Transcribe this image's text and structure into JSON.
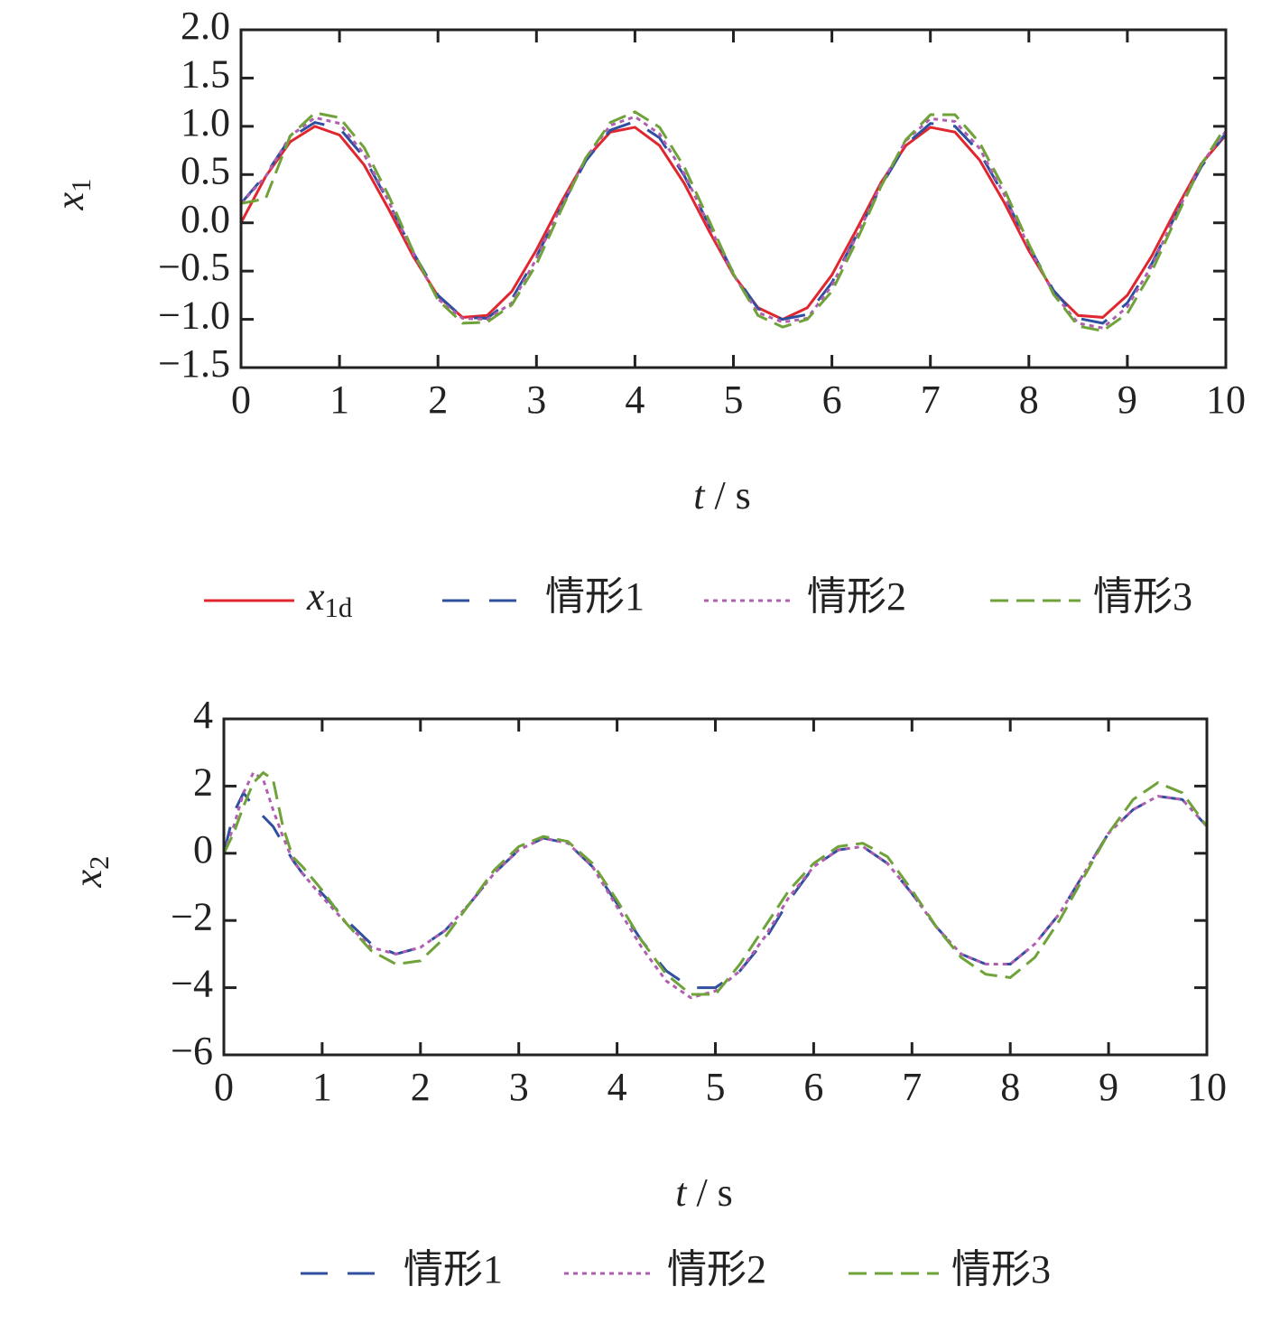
{
  "chart_data": [
    {
      "type": "line",
      "xlabel": "t / s",
      "ylabel": "x1",
      "legend": "bottom",
      "grid": false,
      "xlim": [
        0,
        10
      ],
      "xticks": [
        0,
        1,
        2,
        3,
        4,
        5,
        6,
        7,
        8,
        9,
        10
      ],
      "ylim": [
        -1.5,
        2
      ],
      "yticks": [
        {
          "value": 2,
          "label": "2.0"
        },
        1.5,
        {
          "value": 1,
          "label": "1.0"
        },
        0.5,
        {
          "value": 0,
          "label": "0.0"
        },
        {
          "value": -0.5,
          "label": "−0.5"
        },
        {
          "value": -1,
          "label": "−1.0"
        },
        {
          "value": -1.5,
          "label": "−1.5"
        }
      ],
      "x": [
        0,
        0.25,
        0.5,
        0.75,
        1,
        1.25,
        1.5,
        1.75,
        2,
        2.25,
        2.5,
        2.75,
        3,
        3.25,
        3.5,
        3.75,
        4,
        4.25,
        4.5,
        4.75,
        5,
        5.25,
        5.5,
        5.75,
        6,
        6.25,
        6.5,
        6.75,
        7,
        7.25,
        7.5,
        7.75,
        8,
        8.25,
        8.5,
        8.75,
        9,
        9.25,
        9.5,
        9.75,
        10
      ],
      "series": [
        {
          "name": "x1d",
          "color": "#e0262e",
          "dash": "solid",
          "values": [
            0,
            0.48,
            0.84,
            1.0,
            0.91,
            0.6,
            0.14,
            -0.35,
            -0.76,
            -0.98,
            -0.96,
            -0.71,
            -0.28,
            0.21,
            0.66,
            0.94,
            0.99,
            0.8,
            0.41,
            -0.08,
            -0.54,
            -0.88,
            -1.0,
            -0.88,
            -0.54,
            -0.07,
            0.42,
            0.8,
            0.99,
            0.94,
            0.65,
            0.21,
            -0.29,
            -0.71,
            -0.96,
            -0.98,
            -0.75,
            -0.34,
            0.15,
            0.61,
            0.91
          ]
        },
        {
          "name": "情形1",
          "color": "#2f4f9f",
          "dash": "long",
          "values": [
            0.2,
            0.5,
            0.88,
            1.04,
            0.98,
            0.68,
            0.21,
            -0.31,
            -0.75,
            -0.98,
            -0.99,
            -0.79,
            -0.35,
            0.16,
            0.64,
            0.96,
            1.05,
            0.88,
            0.49,
            -0.02,
            -0.52,
            -0.89,
            -1.0,
            -0.95,
            -0.62,
            -0.13,
            0.38,
            0.81,
            1.03,
            1.0,
            0.73,
            0.28,
            -0.24,
            -0.7,
            -0.99,
            -1.04,
            -0.83,
            -0.42,
            0.1,
            0.58,
            0.93
          ]
        },
        {
          "name": "情形2",
          "color": "#b05fb0",
          "dash": "dot",
          "values": [
            0.2,
            0.48,
            0.9,
            1.09,
            1.03,
            0.71,
            0.22,
            -0.32,
            -0.79,
            -0.99,
            -1.0,
            -0.83,
            -0.37,
            0.17,
            0.67,
            1.01,
            1.1,
            0.92,
            0.51,
            -0.02,
            -0.54,
            -0.93,
            -1.03,
            -0.99,
            -0.65,
            -0.14,
            0.4,
            0.85,
            1.08,
            1.05,
            0.77,
            0.29,
            -0.25,
            -0.73,
            -1.04,
            -1.09,
            -0.87,
            -0.44,
            0.1,
            0.61,
            0.95
          ]
        },
        {
          "name": "情形3",
          "color": "#6fa33a",
          "dash": "dash",
          "values": [
            0.2,
            0.25,
            0.9,
            1.14,
            1.09,
            0.78,
            0.28,
            -0.3,
            -0.8,
            -1.04,
            -1.03,
            -0.85,
            -0.43,
            0.13,
            0.67,
            1.04,
            1.15,
            0.99,
            0.58,
            0.03,
            -0.53,
            -0.96,
            -1.08,
            -1.0,
            -0.71,
            -0.19,
            0.38,
            0.86,
            1.12,
            1.12,
            0.83,
            0.35,
            -0.22,
            -0.74,
            -1.07,
            -1.12,
            -0.94,
            -0.5,
            0.06,
            0.6,
            1.0
          ]
        }
      ]
    },
    {
      "type": "line",
      "xlabel": "t / s",
      "ylabel": "x2",
      "legend": "bottom",
      "grid": false,
      "xlim": [
        0,
        10
      ],
      "xticks": [
        0,
        1,
        2,
        3,
        4,
        5,
        6,
        7,
        8,
        9,
        10
      ],
      "ylim": [
        -6,
        4
      ],
      "yticks": [
        4,
        2,
        0,
        {
          "value": -2,
          "label": "−2"
        },
        {
          "value": -4,
          "label": "−4"
        },
        {
          "value": -6,
          "label": "−6"
        }
      ],
      "x": [
        0,
        0.1,
        0.2,
        0.3,
        0.4,
        0.5,
        0.6,
        0.7,
        0.8,
        1,
        1.25,
        1.5,
        1.75,
        2,
        2.25,
        2.5,
        2.75,
        3,
        3.25,
        3.5,
        3.75,
        4,
        4.25,
        4.5,
        4.75,
        5,
        5.25,
        5.5,
        5.75,
        6,
        6.25,
        6.5,
        6.75,
        7,
        7.25,
        7.5,
        7.75,
        8,
        8.25,
        8.5,
        8.75,
        9,
        9.25,
        9.5,
        9.75,
        10
      ],
      "series": [
        {
          "name": "情形1",
          "color": "#2f4f9f",
          "dash": "long",
          "values": [
            0,
            1.2,
            1.8,
            1.4,
            1.1,
            0.8,
            0.3,
            -0.2,
            -0.6,
            -1.2,
            -2.0,
            -2.7,
            -3.0,
            -2.8,
            -2.3,
            -1.5,
            -0.6,
            0.1,
            0.45,
            0.3,
            -0.4,
            -1.5,
            -2.6,
            -3.5,
            -4.0,
            -4.0,
            -3.5,
            -2.6,
            -1.4,
            -0.4,
            0.1,
            0.2,
            -0.3,
            -1.2,
            -2.2,
            -3.0,
            -3.3,
            -3.3,
            -2.7,
            -1.8,
            -0.6,
            0.6,
            1.3,
            1.7,
            1.6,
            0.8
          ]
        },
        {
          "name": "情形2",
          "color": "#b05fb0",
          "dash": "dot",
          "values": [
            0,
            0.8,
            1.8,
            2.4,
            2.2,
            1.3,
            0.5,
            -0.2,
            -0.6,
            -1.3,
            -2.1,
            -2.8,
            -3.0,
            -2.8,
            -2.3,
            -1.5,
            -0.6,
            0.1,
            0.45,
            0.3,
            -0.4,
            -1.6,
            -2.8,
            -3.8,
            -4.3,
            -4.1,
            -3.5,
            -2.5,
            -1.3,
            -0.4,
            0.1,
            0.2,
            -0.3,
            -1.2,
            -2.2,
            -3.0,
            -3.3,
            -3.3,
            -2.7,
            -1.8,
            -0.6,
            0.6,
            1.3,
            1.7,
            1.6,
            0.8
          ]
        },
        {
          "name": "情形3",
          "color": "#6fa33a",
          "dash": "dash",
          "values": [
            0,
            0.6,
            1.4,
            2.1,
            2.4,
            2.2,
            0.8,
            -0.1,
            -0.4,
            -1.1,
            -2.1,
            -2.9,
            -3.3,
            -3.2,
            -2.5,
            -1.5,
            -0.5,
            0.2,
            0.5,
            0.35,
            -0.3,
            -1.4,
            -2.6,
            -3.6,
            -4.2,
            -4.2,
            -3.3,
            -2.2,
            -1.1,
            -0.3,
            0.2,
            0.3,
            -0.1,
            -1.1,
            -2.2,
            -3.1,
            -3.6,
            -3.7,
            -3.1,
            -2.0,
            -0.7,
            0.6,
            1.6,
            2.1,
            1.8,
            0.8
          ]
        }
      ]
    }
  ]
}
